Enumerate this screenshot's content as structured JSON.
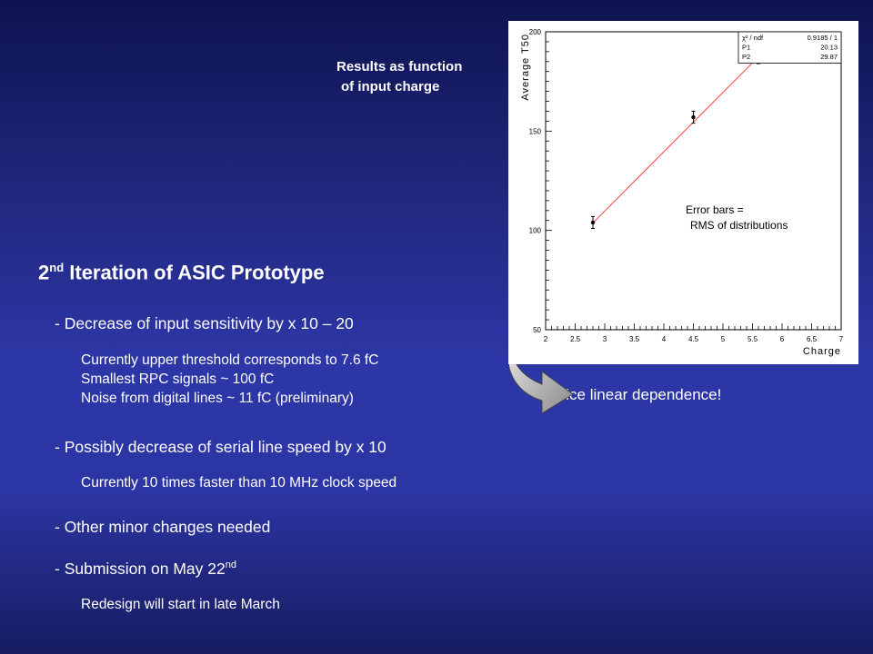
{
  "slide": {
    "heading_main": "2",
    "heading_sup": "nd",
    "heading_rest": " Iteration of ASIC Prototype",
    "results_line1": "Results as function",
    "results_line2": "of input charge",
    "nice": "Nice linear dependence!",
    "bullets": [
      {
        "text": "- Decrease of input sensitivity by x 10 – 20"
      },
      {
        "text": "- Possibly decrease of serial line speed by x 10"
      },
      {
        "text": "- Other minor changes needed"
      },
      {
        "text": "- Submission on May 22",
        "sup": "nd"
      }
    ],
    "subs": [
      "Currently upper threshold corresponds to 7.6 fC",
      "Smallest RPC signals ~ 100 fC",
      "Noise from digital lines ~ 11 fC (preliminary)",
      "Currently 10 times faster than 10 MHz clock speed",
      "Redesign will start in late March"
    ]
  },
  "chart_data": {
    "type": "scatter",
    "xlabel": "Charge",
    "ylabel": "Average T50",
    "xlim": [
      2,
      7
    ],
    "ylim": [
      50,
      200
    ],
    "xticks": [
      "2",
      "2.5",
      "3",
      "3.5",
      "4",
      "4.5",
      "5",
      "5.5",
      "6",
      "6.5",
      "7"
    ],
    "yticks": [
      "50",
      "100",
      "150",
      "200"
    ],
    "points": [
      {
        "x": 2.8,
        "y": 104,
        "err": 3
      },
      {
        "x": 4.5,
        "y": 157,
        "err": 3
      },
      {
        "x": 5.6,
        "y": 187,
        "err": 3
      }
    ],
    "fit": {
      "p1": 20.13,
      "p2": 29.87,
      "x_from": 2.8,
      "x_to": 5.6,
      "color": "#ff3b3b"
    },
    "stats": [
      {
        "label": "χ² / ndf",
        "value": "0.9185  /  1"
      },
      {
        "label": "P1",
        "value": "20.13"
      },
      {
        "label": "P2",
        "value": "29.87"
      }
    ],
    "note_line1": "Error bars =",
    "note_line2": "RMS of distributions"
  }
}
